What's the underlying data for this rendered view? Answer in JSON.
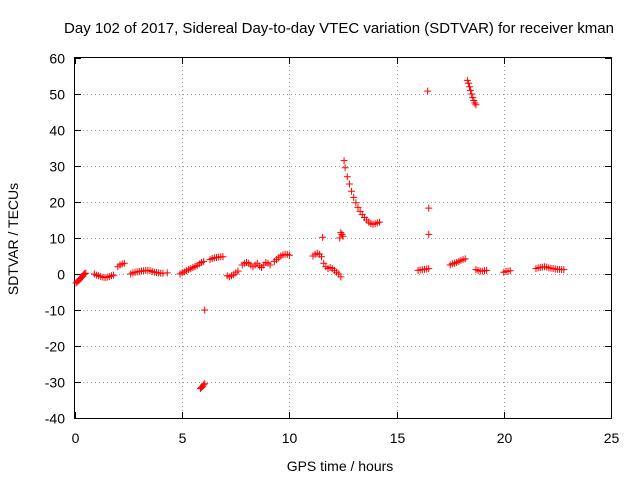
{
  "chart_data": {
    "type": "scatter",
    "title": "Day 102 of 2017, Sidereal Day-to-day VTEC variation (SDTVAR) for receiver kman",
    "xlabel": "GPS time / hours",
    "ylabel": "SDTVAR / TECUs",
    "xlim": [
      0,
      25
    ],
    "ylim": [
      -40,
      60
    ],
    "xticks": [
      0,
      5,
      10,
      15,
      20,
      25
    ],
    "yticks": [
      -40,
      -30,
      -20,
      -10,
      0,
      10,
      20,
      30,
      40,
      50,
      60
    ],
    "grid": true,
    "marker": "+",
    "color": "#ff0000",
    "series": [
      {
        "name": "SDTVAR",
        "points": [
          [
            0.05,
            -2.5
          ],
          [
            0.1,
            -2.2
          ],
          [
            0.15,
            -1.9
          ],
          [
            0.2,
            -1.6
          ],
          [
            0.25,
            -1.3
          ],
          [
            0.3,
            -1.0
          ],
          [
            0.35,
            -0.6
          ],
          [
            0.4,
            -0.2
          ],
          [
            0.45,
            0.1
          ],
          [
            0.5,
            0.2
          ],
          [
            0.9,
            0.0
          ],
          [
            1.0,
            -0.3
          ],
          [
            1.1,
            -0.5
          ],
          [
            1.2,
            -0.7
          ],
          [
            1.3,
            -0.9
          ],
          [
            1.4,
            -1.0
          ],
          [
            1.5,
            -0.9
          ],
          [
            1.6,
            -0.7
          ],
          [
            1.7,
            -0.5
          ],
          [
            1.8,
            -0.3
          ],
          [
            2.0,
            2.0
          ],
          [
            2.1,
            2.5
          ],
          [
            2.2,
            2.8
          ],
          [
            2.3,
            3.0
          ],
          [
            2.6,
            0.0
          ],
          [
            2.7,
            0.3
          ],
          [
            2.8,
            0.5
          ],
          [
            2.9,
            0.6
          ],
          [
            3.0,
            0.7
          ],
          [
            3.1,
            0.8
          ],
          [
            3.2,
            0.9
          ],
          [
            3.3,
            1.0
          ],
          [
            3.4,
            1.0
          ],
          [
            3.5,
            0.9
          ],
          [
            3.6,
            0.7
          ],
          [
            3.7,
            0.5
          ],
          [
            3.8,
            0.4
          ],
          [
            3.9,
            0.3
          ],
          [
            4.0,
            0.2
          ],
          [
            4.1,
            0.2
          ],
          [
            4.3,
            0.3
          ],
          [
            4.9,
            0.0
          ],
          [
            5.0,
            0.3
          ],
          [
            5.1,
            0.6
          ],
          [
            5.2,
            0.9
          ],
          [
            5.3,
            1.2
          ],
          [
            5.4,
            1.5
          ],
          [
            5.5,
            1.8
          ],
          [
            5.6,
            2.1
          ],
          [
            5.7,
            2.4
          ],
          [
            5.8,
            2.8
          ],
          [
            5.9,
            3.2
          ],
          [
            6.0,
            3.5
          ],
          [
            5.85,
            -31.8
          ],
          [
            5.9,
            -31.5
          ],
          [
            5.95,
            -31.2
          ],
          [
            6.0,
            -30.8
          ],
          [
            6.05,
            -30.5
          ],
          [
            6.05,
            -10.0
          ],
          [
            6.3,
            4.0
          ],
          [
            6.4,
            4.3
          ],
          [
            6.5,
            4.5
          ],
          [
            6.6,
            4.6
          ],
          [
            6.7,
            4.7
          ],
          [
            6.8,
            4.8
          ],
          [
            6.9,
            4.8
          ],
          [
            7.1,
            -0.5
          ],
          [
            7.2,
            -0.8
          ],
          [
            7.3,
            -0.5
          ],
          [
            7.4,
            -0.2
          ],
          [
            7.5,
            0.3
          ],
          [
            7.6,
            0.8
          ],
          [
            7.8,
            2.5
          ],
          [
            7.9,
            3.0
          ],
          [
            8.0,
            3.2
          ],
          [
            8.1,
            3.0
          ],
          [
            8.2,
            2.5
          ],
          [
            8.3,
            2.0
          ],
          [
            8.4,
            2.5
          ],
          [
            8.5,
            3.0
          ],
          [
            8.6,
            2.2
          ],
          [
            8.7,
            1.8
          ],
          [
            8.8,
            2.5
          ],
          [
            8.9,
            3.2
          ],
          [
            9.0,
            3.0
          ],
          [
            9.1,
            2.5
          ],
          [
            9.3,
            3.5
          ],
          [
            9.4,
            4.0
          ],
          [
            9.5,
            4.5
          ],
          [
            9.6,
            5.0
          ],
          [
            9.7,
            5.3
          ],
          [
            9.8,
            5.5
          ],
          [
            9.9,
            5.4
          ],
          [
            10.0,
            5.2
          ],
          [
            11.1,
            5.0
          ],
          [
            11.2,
            5.5
          ],
          [
            11.3,
            5.8
          ],
          [
            11.4,
            5.5
          ],
          [
            11.5,
            4.8
          ],
          [
            11.6,
            3.0
          ],
          [
            11.7,
            2.0
          ],
          [
            11.8,
            1.5
          ],
          [
            11.9,
            1.8
          ],
          [
            12.0,
            1.5
          ],
          [
            12.1,
            1.0
          ],
          [
            12.2,
            0.5
          ],
          [
            12.3,
            0.0
          ],
          [
            12.4,
            -0.8
          ],
          [
            11.55,
            10.2
          ],
          [
            12.35,
            10.0
          ],
          [
            12.4,
            11.5
          ],
          [
            12.45,
            11.0
          ],
          [
            12.5,
            10.5
          ],
          [
            12.55,
            31.5
          ],
          [
            12.6,
            29.5
          ],
          [
            12.7,
            27.0
          ],
          [
            12.8,
            25.0
          ],
          [
            12.9,
            23.0
          ],
          [
            13.0,
            21.3
          ],
          [
            13.1,
            19.8
          ],
          [
            13.2,
            18.5
          ],
          [
            13.3,
            17.4
          ],
          [
            13.4,
            16.5
          ],
          [
            13.5,
            15.7
          ],
          [
            13.6,
            15.0
          ],
          [
            13.7,
            14.4
          ],
          [
            13.8,
            14.0
          ],
          [
            13.9,
            13.8
          ],
          [
            14.0,
            14.0
          ],
          [
            14.1,
            14.2
          ],
          [
            14.2,
            14.4
          ],
          [
            16.0,
            1.0
          ],
          [
            16.1,
            1.1
          ],
          [
            16.2,
            1.2
          ],
          [
            16.3,
            1.3
          ],
          [
            16.4,
            1.4
          ],
          [
            16.5,
            1.5
          ],
          [
            16.45,
            50.8
          ],
          [
            16.5,
            18.3
          ],
          [
            16.5,
            11.0
          ],
          [
            17.5,
            2.5
          ],
          [
            17.6,
            2.8
          ],
          [
            17.7,
            3.0
          ],
          [
            17.8,
            3.2
          ],
          [
            17.9,
            3.5
          ],
          [
            18.0,
            3.8
          ],
          [
            18.1,
            4.0
          ],
          [
            18.2,
            4.2
          ],
          [
            18.3,
            53.8
          ],
          [
            18.35,
            53.0
          ],
          [
            18.4,
            52.0
          ],
          [
            18.45,
            51.0
          ],
          [
            18.5,
            50.0
          ],
          [
            18.55,
            49.0
          ],
          [
            18.6,
            48.2
          ],
          [
            18.65,
            47.5
          ],
          [
            18.7,
            47.0
          ],
          [
            18.7,
            1.2
          ],
          [
            18.8,
            1.0
          ],
          [
            18.9,
            0.8
          ],
          [
            19.0,
            0.8
          ],
          [
            19.1,
            0.9
          ],
          [
            19.2,
            1.0
          ],
          [
            20.0,
            0.5
          ],
          [
            20.1,
            0.7
          ],
          [
            20.2,
            0.8
          ],
          [
            20.3,
            0.9
          ],
          [
            21.5,
            1.5
          ],
          [
            21.6,
            1.7
          ],
          [
            21.7,
            1.8
          ],
          [
            21.8,
            1.9
          ],
          [
            21.9,
            2.0
          ],
          [
            22.0,
            1.9
          ],
          [
            22.1,
            1.7
          ],
          [
            22.2,
            1.6
          ],
          [
            22.3,
            1.5
          ],
          [
            22.4,
            1.4
          ],
          [
            22.5,
            1.3
          ],
          [
            22.6,
            1.3
          ],
          [
            22.7,
            1.2
          ],
          [
            22.8,
            1.2
          ]
        ]
      }
    ]
  }
}
